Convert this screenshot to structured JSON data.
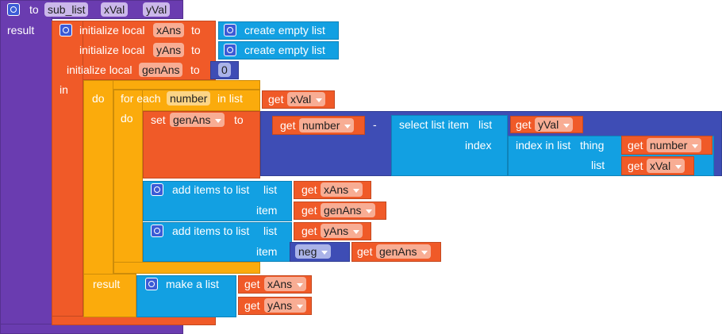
{
  "procedure": {
    "keyword": "to",
    "name": "sub_list",
    "params": [
      "xVal",
      "yVal"
    ],
    "result_label": "result"
  },
  "locals": {
    "items": [
      {
        "label": "initialize local",
        "name": "xAns",
        "to": "to",
        "value": "create empty list"
      },
      {
        "label": "initialize local",
        "name": "yAns",
        "to": "to",
        "value": "create empty list"
      },
      {
        "label": "initialize local",
        "name": "genAns",
        "to": "to",
        "value": 0
      }
    ],
    "in_label": "in"
  },
  "do_block": {
    "do_label": "do",
    "result_label": "result"
  },
  "for_each": {
    "label": "for each",
    "var": "number",
    "in_list": "in list",
    "get": "get",
    "list_var": "xVal",
    "do_label": "do"
  },
  "set_block": {
    "label": "set",
    "var": "genAns",
    "to": "to",
    "left_get": "get",
    "left_var": "number",
    "op": "-"
  },
  "select": {
    "label": "select list item",
    "list_label": "list",
    "get": "get",
    "list_var": "yVal",
    "index_label": "index"
  },
  "index_in_list": {
    "label": "index in list",
    "thing_label": "thing",
    "thing_get": "get",
    "thing_var": "number",
    "list_label": "list",
    "list_get": "get",
    "list_var": "xVal"
  },
  "add_items": [
    {
      "label": "add items to list",
      "list_label": "list",
      "list_get": "get",
      "list_var": "xAns",
      "item_label": "item",
      "item_get": "get",
      "item_var": "genAns"
    },
    {
      "label": "add items to list",
      "list_label": "list",
      "list_get": "get",
      "list_var": "yAns",
      "item_label": "item",
      "item_op": "neg",
      "item_get": "get",
      "item_var": "genAns"
    }
  ],
  "make_list": {
    "label": "make a list",
    "items": [
      {
        "get": "get",
        "var": "xAns"
      },
      {
        "get": "get",
        "var": "yAns"
      }
    ]
  }
}
